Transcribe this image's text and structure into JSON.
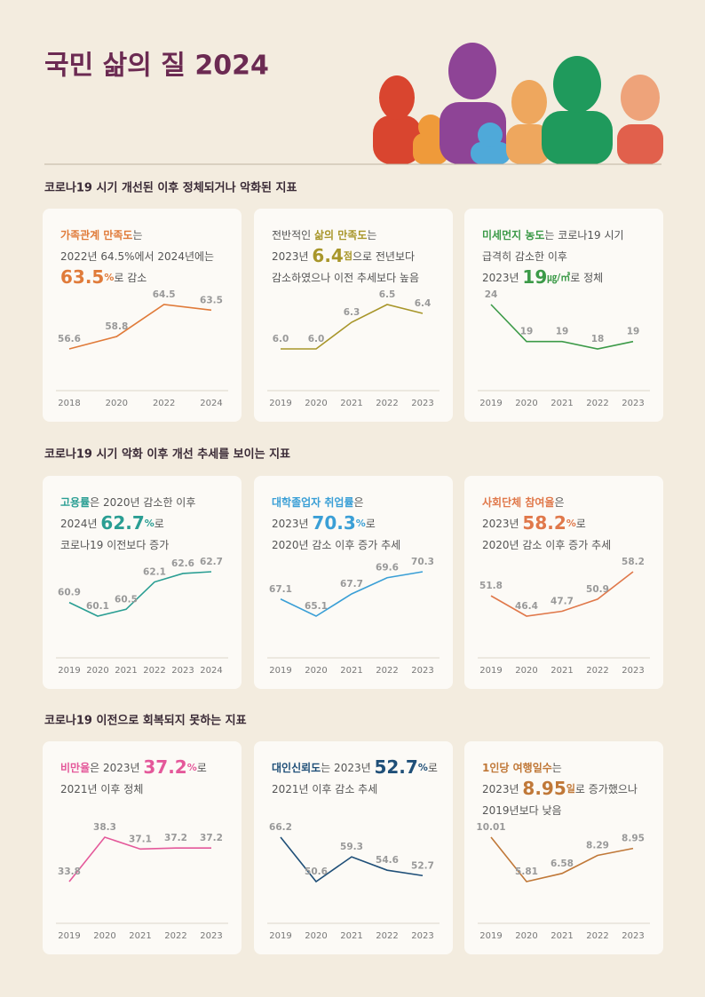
{
  "title": "국민 삶의 질 2024",
  "sections": [
    "코로나19 시기 개선된 이후 정체되거나 악화된 지표",
    "코로나19 시기 악화 이후 개선 추세를 보이는 지표",
    "코로나19 이전으로 회복되지 못하는 지표"
  ],
  "chart_data": [
    {
      "type": "line",
      "color": "#e07b3a",
      "description": [
        [
          {
            "text": "가족관계 만족도",
            "style": "key"
          },
          "는"
        ],
        [
          "2022년 64.5%에서 2024년에는"
        ],
        [
          {
            "text": "63.5",
            "style": "big"
          },
          {
            "text": "%",
            "style": "unit"
          },
          "로 감소"
        ]
      ],
      "categories": [
        "2018",
        "2020",
        "2022",
        "2024"
      ],
      "values": [
        56.6,
        58.8,
        64.5,
        63.5
      ]
    },
    {
      "type": "line",
      "color": "#a8962a",
      "description": [
        [
          "전반적인 ",
          {
            "text": "삶의 만족도",
            "style": "key"
          },
          "는"
        ],
        [
          "2023년 ",
          {
            "text": "6.4",
            "style": "big"
          },
          {
            "text": "점",
            "style": "unit"
          },
          "으로 전년보다"
        ],
        [
          "감소하였으나 이전 추세보다 높음"
        ]
      ],
      "categories": [
        "2019",
        "2020",
        "2021",
        "2022",
        "2023"
      ],
      "values": [
        6.0,
        6.0,
        6.3,
        6.5,
        6.4
      ],
      "value_labels": [
        "6.0",
        "6.0",
        "6.3",
        "6.5",
        "6.4"
      ]
    },
    {
      "type": "line",
      "color": "#3c9a48",
      "description": [
        [
          {
            "text": "미세먼지 농도",
            "style": "key"
          },
          "는 코로나19 시기"
        ],
        [
          "급격히 감소한 이후"
        ],
        [
          "2023년 ",
          {
            "text": "19",
            "style": "big"
          },
          {
            "text": "㎍/㎥",
            "style": "unit"
          },
          "로 정체"
        ]
      ],
      "categories": [
        "2019",
        "2020",
        "2021",
        "2022",
        "2023"
      ],
      "values": [
        24,
        19,
        19,
        18,
        19
      ]
    },
    {
      "type": "line",
      "color": "#2a9e93",
      "description": [
        [
          {
            "text": "고용률",
            "style": "key"
          },
          "은 2020년 감소한 이후"
        ],
        [
          "2024년 ",
          {
            "text": "62.7",
            "style": "big"
          },
          {
            "text": "%",
            "style": "unit"
          },
          "로"
        ],
        [
          "코로나19 이전보다 증가"
        ]
      ],
      "categories": [
        "2019",
        "2020",
        "2021",
        "2022",
        "2023",
        "2024"
      ],
      "values": [
        60.9,
        60.1,
        60.5,
        62.1,
        62.6,
        62.7
      ]
    },
    {
      "type": "line",
      "color": "#3a9fd6",
      "description": [
        [
          {
            "text": "대학졸업자 취업률",
            "style": "key"
          },
          "은"
        ],
        [
          "2023년 ",
          {
            "text": "70.3",
            "style": "big"
          },
          {
            "text": "%",
            "style": "unit"
          },
          "로"
        ],
        [
          "2020년 감소 이후 증가 추세"
        ]
      ],
      "categories": [
        "2019",
        "2020",
        "2021",
        "2022",
        "2023"
      ],
      "values": [
        67.1,
        65.1,
        67.7,
        69.6,
        70.3
      ]
    },
    {
      "type": "line",
      "color": "#e0784a",
      "description": [
        [
          {
            "text": "사회단체 참여율",
            "style": "key"
          },
          "은"
        ],
        [
          "2023년 ",
          {
            "text": "58.2",
            "style": "big"
          },
          {
            "text": "%",
            "style": "unit"
          },
          "로"
        ],
        [
          "2020년 감소 이후 증가 추세"
        ]
      ],
      "categories": [
        "2019",
        "2020",
        "2021",
        "2022",
        "2023"
      ],
      "values": [
        51.8,
        46.4,
        47.7,
        50.9,
        58.2
      ]
    },
    {
      "type": "line",
      "color": "#e4589a",
      "description": [
        [
          {
            "text": "비만율",
            "style": "key"
          },
          "은 2023년 ",
          {
            "text": "37.2",
            "style": "big"
          },
          {
            "text": "%",
            "style": "unit"
          },
          "로"
        ],
        [
          "2021년 이후 정체"
        ]
      ],
      "categories": [
        "2019",
        "2020",
        "2021",
        "2022",
        "2023"
      ],
      "values": [
        33.8,
        38.3,
        37.1,
        37.2,
        37.2
      ]
    },
    {
      "type": "line",
      "color": "#1f4f78",
      "description": [
        [
          {
            "text": "대인신뢰도",
            "style": "key"
          },
          "는 2023년 ",
          {
            "text": "52.7",
            "style": "big"
          },
          {
            "text": "%",
            "style": "unit"
          },
          "로"
        ],
        [
          "2021년 이후 감소 추세"
        ]
      ],
      "categories": [
        "2019",
        "2020",
        "2021",
        "2022",
        "2023"
      ],
      "values": [
        66.2,
        50.6,
        59.3,
        54.6,
        52.7
      ]
    },
    {
      "type": "line",
      "color": "#c07838",
      "description": [
        [
          {
            "text": "1인당 여행일수",
            "style": "key"
          },
          "는"
        ],
        [
          "2023년 ",
          {
            "text": "8.95",
            "style": "big"
          },
          {
            "text": "일",
            "style": "unit"
          },
          "로 증가했으나"
        ],
        [
          "2019년보다 낮음"
        ]
      ],
      "categories": [
        "2019",
        "2020",
        "2021",
        "2022",
        "2023"
      ],
      "values": [
        10.01,
        5.81,
        6.58,
        8.29,
        8.95
      ]
    }
  ]
}
